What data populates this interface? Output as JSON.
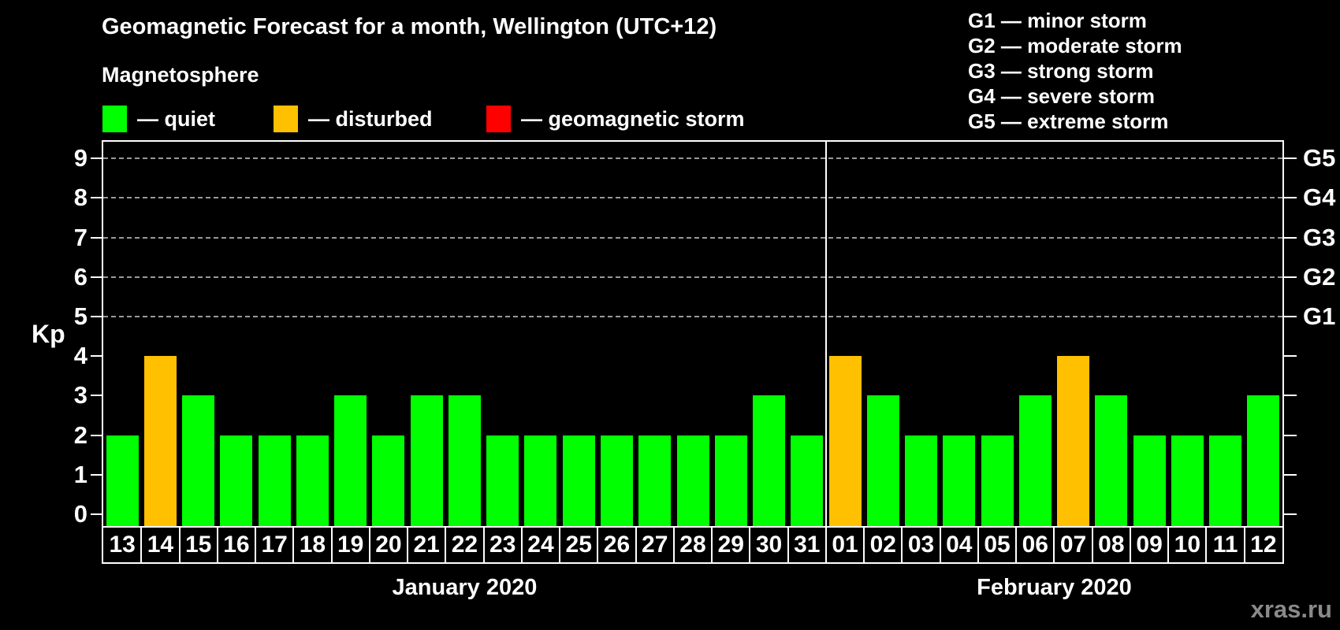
{
  "title": "Geomagnetic Forecast for a month, Wellington (UTC+12)",
  "subtitle": "Magnetosphere",
  "kp_axis_label": "Kp",
  "watermark": "xras.ru",
  "legend": {
    "items": [
      {
        "name": "quiet",
        "label": "— quiet",
        "color": "#00FF00"
      },
      {
        "name": "disturbed",
        "label": "— disturbed",
        "color": "#FFC000"
      },
      {
        "name": "storm",
        "label": "— geomagnetic storm",
        "color": "#FF0000"
      }
    ]
  },
  "g_legend": {
    "lines": [
      "G1 — minor storm",
      "G2 — moderate storm",
      "G3 — strong storm",
      "G4 — severe storm",
      "G5 — extreme storm"
    ]
  },
  "chart_data": {
    "type": "bar",
    "ylabel": "Kp",
    "ylim": [
      0,
      9
    ],
    "yticks": [
      0,
      1,
      2,
      3,
      4,
      5,
      6,
      7,
      8,
      9
    ],
    "gridlines_at": [
      5,
      6,
      7,
      8,
      9
    ],
    "grid_style": "dashed",
    "right_axis_labels": [
      {
        "value": 5,
        "label": "G1"
      },
      {
        "value": 6,
        "label": "G2"
      },
      {
        "value": 7,
        "label": "G3"
      },
      {
        "value": 8,
        "label": "G4"
      },
      {
        "value": 9,
        "label": "G5"
      }
    ],
    "status_colors": {
      "quiet": "#00FF00",
      "disturbed": "#FFC000",
      "storm": "#FF0000"
    },
    "sections": [
      {
        "label": "January 2020",
        "days": [
          {
            "day": "13",
            "kp": 2,
            "status": "quiet"
          },
          {
            "day": "14",
            "kp": 4,
            "status": "disturbed"
          },
          {
            "day": "15",
            "kp": 3,
            "status": "quiet"
          },
          {
            "day": "16",
            "kp": 2,
            "status": "quiet"
          },
          {
            "day": "17",
            "kp": 2,
            "status": "quiet"
          },
          {
            "day": "18",
            "kp": 2,
            "status": "quiet"
          },
          {
            "day": "19",
            "kp": 3,
            "status": "quiet"
          },
          {
            "day": "20",
            "kp": 2,
            "status": "quiet"
          },
          {
            "day": "21",
            "kp": 3,
            "status": "quiet"
          },
          {
            "day": "22",
            "kp": 3,
            "status": "quiet"
          },
          {
            "day": "23",
            "kp": 2,
            "status": "quiet"
          },
          {
            "day": "24",
            "kp": 2,
            "status": "quiet"
          },
          {
            "day": "25",
            "kp": 2,
            "status": "quiet"
          },
          {
            "day": "26",
            "kp": 2,
            "status": "quiet"
          },
          {
            "day": "27",
            "kp": 2,
            "status": "quiet"
          },
          {
            "day": "28",
            "kp": 2,
            "status": "quiet"
          },
          {
            "day": "29",
            "kp": 2,
            "status": "quiet"
          },
          {
            "day": "30",
            "kp": 3,
            "status": "quiet"
          },
          {
            "day": "31",
            "kp": 2,
            "status": "quiet"
          }
        ]
      },
      {
        "label": "February 2020",
        "days": [
          {
            "day": "01",
            "kp": 4,
            "status": "disturbed"
          },
          {
            "day": "02",
            "kp": 3,
            "status": "quiet"
          },
          {
            "day": "03",
            "kp": 2,
            "status": "quiet"
          },
          {
            "day": "04",
            "kp": 2,
            "status": "quiet"
          },
          {
            "day": "05",
            "kp": 2,
            "status": "quiet"
          },
          {
            "day": "06",
            "kp": 3,
            "status": "quiet"
          },
          {
            "day": "07",
            "kp": 4,
            "status": "disturbed"
          },
          {
            "day": "08",
            "kp": 3,
            "status": "quiet"
          },
          {
            "day": "09",
            "kp": 2,
            "status": "quiet"
          },
          {
            "day": "10",
            "kp": 2,
            "status": "quiet"
          },
          {
            "day": "11",
            "kp": 2,
            "status": "quiet"
          },
          {
            "day": "12",
            "kp": 3,
            "status": "quiet"
          }
        ]
      }
    ]
  }
}
